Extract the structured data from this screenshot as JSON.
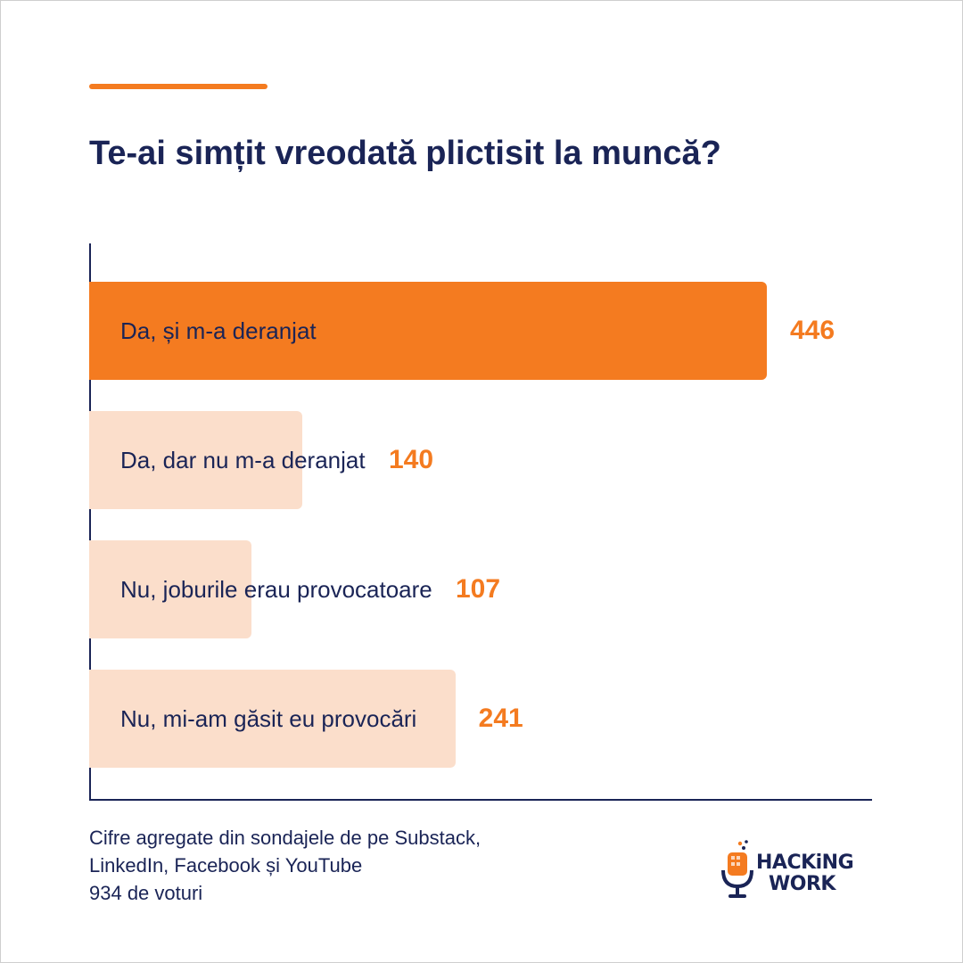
{
  "colors": {
    "accent": "#f47b20",
    "bar_light": "#fbdecb",
    "navy": "#1a2456",
    "axis": "#1a2456"
  },
  "chart_data": {
    "type": "bar",
    "orientation": "horizontal",
    "title": "Te-ai simțit vreodată plictisit la muncă?",
    "categories": [
      "Da, și m-a deranjat",
      "Da, dar nu m-a deranjat",
      "Nu, joburile erau provocatoare",
      "Nu, mi-am găsit eu provocări"
    ],
    "values": [
      446,
      140,
      107,
      241
    ],
    "xlim": [
      0,
      446
    ],
    "highlight_index": 0,
    "data_labels": true,
    "grid": false
  },
  "footer": {
    "lines": [
      "Cifre agregate din sondajele de pe Substack,",
      "LinkedIn, Facebook și YouTube",
      "934 de voturi"
    ]
  },
  "logo": {
    "line1": "HACKiNG",
    "line2": "WORK",
    "icon": "microphone-icon"
  }
}
